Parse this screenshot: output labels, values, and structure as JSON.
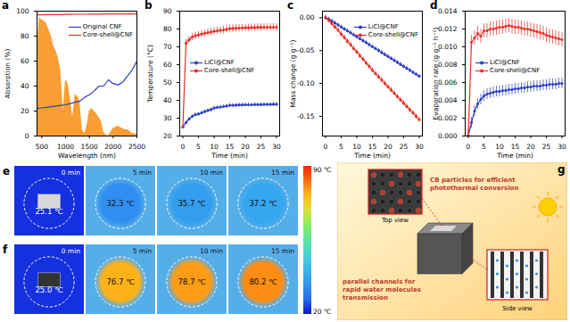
{
  "chart_data": [
    {
      "panel": "a",
      "type": "line",
      "x_label": "Wavelength (nm)",
      "y_label": "Absorption (%)",
      "xlim": [
        400,
        2500
      ],
      "xticks": [
        500,
        1000,
        1500,
        2000,
        2500
      ],
      "ylim": [
        0,
        100
      ],
      "yticks": [
        0,
        20,
        40,
        60,
        80,
        100
      ],
      "legend": "upper right",
      "x": [
        400,
        500,
        600,
        700,
        800,
        900,
        1000,
        1100,
        1200,
        1300,
        1400,
        1500,
        1600,
        1700,
        1800,
        1900,
        2000,
        2100,
        2200,
        2300,
        2400,
        2500
      ],
      "series": [
        {
          "type": "area",
          "color": "#f7941d",
          "x": [
            400,
            450,
            500,
            550,
            600,
            650,
            700,
            750,
            800,
            850,
            900,
            950,
            1000,
            1050,
            1100,
            1150,
            1200,
            1250,
            1300,
            1350,
            1400,
            1450,
            1500,
            1550,
            1600,
            1650,
            1700,
            1750,
            1800,
            1850,
            1900,
            1950,
            2000,
            2050,
            2100,
            2150,
            2200,
            2250,
            2300,
            2350,
            2400,
            2450,
            2500
          ],
          "values": [
            70,
            95,
            93,
            92,
            90,
            85,
            80,
            72,
            68,
            62,
            52,
            20,
            45,
            42,
            30,
            15,
            33,
            32,
            28,
            5,
            2,
            8,
            20,
            22,
            20,
            18,
            15,
            12,
            3,
            1,
            0,
            3,
            6,
            7,
            8,
            7,
            6,
            5,
            5,
            4,
            2,
            2,
            1
          ]
        },
        {
          "name": "Original CNF",
          "color": "#2b3fc4",
          "values": [
            22,
            22.5,
            23,
            23.5,
            24,
            24.5,
            25,
            26,
            27,
            28,
            31,
            33,
            36,
            40,
            40,
            45,
            42,
            41,
            43,
            48,
            53,
            60
          ]
        },
        {
          "name": "Core-shell@CNF",
          "color": "#e63027",
          "values": [
            97,
            97,
            97.2,
            97.2,
            97.3,
            97.3,
            97.4,
            97.4,
            97.5,
            97.5,
            97.5,
            97.6,
            97.6,
            97.6,
            97.7,
            97.7,
            97.7,
            97.8,
            97.8,
            97.8,
            97.8,
            97.9
          ]
        }
      ]
    },
    {
      "panel": "b",
      "type": "line",
      "x_label": "Time (min)",
      "y_label": "Temperature (°C)",
      "xlim": [
        -1,
        31
      ],
      "xticks": [
        0,
        5,
        10,
        15,
        20,
        25,
        30
      ],
      "ylim": [
        20,
        90
      ],
      "yticks": [
        20,
        30,
        40,
        50,
        60,
        70,
        80,
        90
      ],
      "legend": "center left",
      "x": [
        0,
        1,
        2,
        3,
        4,
        5,
        6,
        7,
        8,
        9,
        10,
        11,
        12,
        13,
        14,
        15,
        16,
        17,
        18,
        19,
        20,
        21,
        22,
        23,
        24,
        25,
        26,
        27,
        28,
        29,
        30
      ],
      "series": [
        {
          "name": "LiCl@CNF",
          "color": "#2b3fc4",
          "marker": "circle",
          "values": [
            25.1,
            27.5,
            29.5,
            31,
            32,
            32.3,
            33,
            33.7,
            34.3,
            34.8,
            35.7,
            36,
            36.2,
            36.5,
            36.8,
            37.2,
            37.2,
            37.3,
            37.4,
            37.4,
            37.5,
            37.5,
            37.5,
            37.6,
            37.6,
            37.6,
            37.7,
            37.7,
            37.7,
            37.8,
            37.8
          ],
          "errors": [
            1,
            1,
            1,
            1,
            1,
            1,
            1,
            1,
            1,
            1,
            1,
            1,
            1,
            1,
            1,
            1,
            1,
            1,
            1,
            1,
            1,
            1,
            1,
            1,
            1,
            1,
            1,
            1,
            1,
            1,
            1
          ]
        },
        {
          "name": "Core-shell@CNF",
          "color": "#e63027",
          "marker": "circle",
          "values": [
            25,
            72,
            74,
            75.5,
            76.2,
            76.7,
            77.2,
            77.6,
            78,
            78.3,
            78.7,
            79,
            79.2,
            79.5,
            79.8,
            80.2,
            80.3,
            80.4,
            80.5,
            80.6,
            80.7,
            80.7,
            80.8,
            80.8,
            80.9,
            80.9,
            81,
            81,
            81,
            81,
            81
          ],
          "errors": [
            0.5,
            2,
            2,
            2,
            2,
            2,
            2,
            2,
            2,
            2,
            2,
            2,
            2,
            2,
            2,
            2,
            2,
            2,
            2,
            2,
            2,
            2,
            2,
            2,
            2,
            2,
            2,
            2,
            2,
            2,
            2
          ]
        }
      ]
    },
    {
      "panel": "c",
      "type": "line",
      "x_label": "Time (min)",
      "y_label": "Mass change (g g⁻¹)",
      "xlim": [
        -1,
        31
      ],
      "xticks": [
        0,
        5,
        10,
        15,
        20,
        25,
        30
      ],
      "ylim": [
        -0.18,
        0.01
      ],
      "yticks": [
        {
          "value": 0,
          "label": "0.00"
        },
        {
          "value": -0.05,
          "label": "-0.05"
        },
        {
          "value": -0.1,
          "label": "-0.10"
        },
        {
          "value": -0.15,
          "label": "-0.15"
        }
      ],
      "legend": "upper right",
      "x": [
        0,
        1,
        2,
        3,
        4,
        5,
        6,
        7,
        8,
        9,
        10,
        11,
        12,
        13,
        14,
        15,
        16,
        17,
        18,
        19,
        20,
        21,
        22,
        23,
        24,
        25,
        26,
        27,
        28,
        29,
        30
      ],
      "series": [
        {
          "name": "LiCl@CNF",
          "color": "#2b3fc4",
          "marker": "circle",
          "values": [
            0,
            -0.002,
            -0.005,
            -0.008,
            -0.011,
            -0.014,
            -0.017,
            -0.02,
            -0.023,
            -0.026,
            -0.029,
            -0.032,
            -0.035,
            -0.038,
            -0.041,
            -0.044,
            -0.047,
            -0.05,
            -0.053,
            -0.056,
            -0.059,
            -0.062,
            -0.065,
            -0.068,
            -0.071,
            -0.074,
            -0.077,
            -0.08,
            -0.083,
            -0.086,
            -0.089
          ],
          "errors": [
            0.003,
            0.003,
            0.003,
            0.003,
            0.003,
            0.003,
            0.003,
            0.003,
            0.003,
            0.003,
            0.003,
            0.003,
            0.003,
            0.003,
            0.003,
            0.003,
            0.003,
            0.003,
            0.003,
            0.003,
            0.003,
            0.003,
            0.003,
            0.003,
            0.003,
            0.003,
            0.003,
            0.003,
            0.003,
            0.003,
            0.003
          ]
        },
        {
          "name": "Core-shell@CNF",
          "color": "#e63027",
          "marker": "circle",
          "values": [
            0,
            -0.004,
            -0.009,
            -0.014,
            -0.019,
            -0.025,
            -0.03,
            -0.036,
            -0.041,
            -0.047,
            -0.052,
            -0.058,
            -0.063,
            -0.069,
            -0.074,
            -0.08,
            -0.085,
            -0.09,
            -0.095,
            -0.1,
            -0.105,
            -0.11,
            -0.115,
            -0.12,
            -0.125,
            -0.13,
            -0.135,
            -0.14,
            -0.145,
            -0.15,
            -0.155
          ],
          "errors": [
            0.004,
            0.004,
            0.004,
            0.004,
            0.004,
            0.004,
            0.004,
            0.004,
            0.004,
            0.004,
            0.004,
            0.004,
            0.004,
            0.004,
            0.004,
            0.004,
            0.004,
            0.004,
            0.004,
            0.004,
            0.004,
            0.004,
            0.004,
            0.004,
            0.004,
            0.004,
            0.004,
            0.004,
            0.004,
            0.004,
            0.004
          ]
        }
      ]
    },
    {
      "panel": "d",
      "type": "line",
      "x_label": "Time (min)",
      "y_label": "Evaporation rate (g g⁻¹ h⁻¹)",
      "xlim": [
        -1,
        31
      ],
      "xticks": [
        0,
        5,
        10,
        15,
        20,
        25,
        30
      ],
      "ylim": [
        0,
        0.014
      ],
      "yticks": [
        {
          "value": 0,
          "label": "0.000"
        },
        {
          "value": 0.002,
          "label": "0.002"
        },
        {
          "value": 0.004,
          "label": "0.004"
        },
        {
          "value": 0.006,
          "label": "0.006"
        },
        {
          "value": 0.008,
          "label": "0.008"
        },
        {
          "value": 0.01,
          "label": "0.010"
        },
        {
          "value": 0.012,
          "label": "0.012"
        },
        {
          "value": 0.014,
          "label": "0.014"
        }
      ],
      "legend": "center left",
      "x": [
        0,
        1,
        2,
        3,
        4,
        5,
        6,
        7,
        8,
        9,
        10,
        11,
        12,
        13,
        14,
        15,
        16,
        17,
        18,
        19,
        20,
        21,
        22,
        23,
        24,
        25,
        26,
        27,
        28,
        29,
        30
      ],
      "series": [
        {
          "name": "LiCl@CNF",
          "color": "#2b3fc4",
          "marker": "circle",
          "values": [
            0,
            0.0015,
            0.0028,
            0.0036,
            0.0041,
            0.0045,
            0.0047,
            0.0048,
            0.0049,
            0.005,
            0.005,
            0.0051,
            0.0051,
            0.0052,
            0.0052,
            0.0053,
            0.0053,
            0.0054,
            0.0054,
            0.0055,
            0.0055,
            0.0056,
            0.0056,
            0.0056,
            0.0057,
            0.0057,
            0.0058,
            0.0058,
            0.0058,
            0.0059,
            0.0059
          ],
          "errors": [
            0.0006,
            0.0006,
            0.0006,
            0.0006,
            0.0006,
            0.0006,
            0.0006,
            0.0006,
            0.0006,
            0.0006,
            0.0006,
            0.0006,
            0.0006,
            0.0006,
            0.0006,
            0.0006,
            0.0006,
            0.0006,
            0.0006,
            0.0006,
            0.0006,
            0.0006,
            0.0006,
            0.0006,
            0.0006,
            0.0006,
            0.0006,
            0.0006,
            0.0006,
            0.0006,
            0.0006
          ]
        },
        {
          "name": "Core-shell@CNF",
          "color": "#e63027",
          "marker": "circle",
          "values": [
            0,
            0.0105,
            0.011,
            0.0115,
            0.0112,
            0.0118,
            0.0118,
            0.012,
            0.012,
            0.0121,
            0.0122,
            0.0122,
            0.0123,
            0.0124,
            0.0123,
            0.0122,
            0.0122,
            0.0121,
            0.012,
            0.012,
            0.0119,
            0.0118,
            0.0117,
            0.0116,
            0.0115,
            0.0113,
            0.0112,
            0.0111,
            0.011,
            0.0109,
            0.0108
          ],
          "errors": [
            0.0008,
            0.0008,
            0.0008,
            0.0008,
            0.0008,
            0.0008,
            0.0008,
            0.0008,
            0.0008,
            0.0008,
            0.0008,
            0.0008,
            0.0008,
            0.0008,
            0.0008,
            0.0008,
            0.0008,
            0.0008,
            0.0008,
            0.0008,
            0.0008,
            0.0008,
            0.0008,
            0.0008,
            0.0008,
            0.0008,
            0.0008,
            0.0008,
            0.0008,
            0.0008,
            0.0008
          ]
        }
      ]
    }
  ],
  "thermal_images": {
    "unit": "℃",
    "colorbar": {
      "range": [
        20,
        90
      ],
      "ticks": [
        90,
        20
      ]
    },
    "rows": [
      {
        "panel": "e",
        "frames": [
          {
            "time": "0 min",
            "temperature": 25.1
          },
          {
            "time": "5 min",
            "temperature": 32.3
          },
          {
            "time": "10 min",
            "temperature": 35.7
          },
          {
            "time": "15 min",
            "temperature": 37.2
          }
        ]
      },
      {
        "panel": "f",
        "frames": [
          {
            "time": "0 min",
            "temperature": 25.0
          },
          {
            "time": "5 min",
            "temperature": 76.7
          },
          {
            "time": "10 min",
            "temperature": 78.7
          },
          {
            "time": "15 min",
            "temperature": 80.2
          }
        ]
      }
    ]
  },
  "schematic": {
    "panel": "g",
    "top_label": "CB particles for efficient photothermal conversion",
    "top_view": "Top view",
    "side_label": "parallel channels for rapid water molecules transmission",
    "side_view": "Side view"
  }
}
